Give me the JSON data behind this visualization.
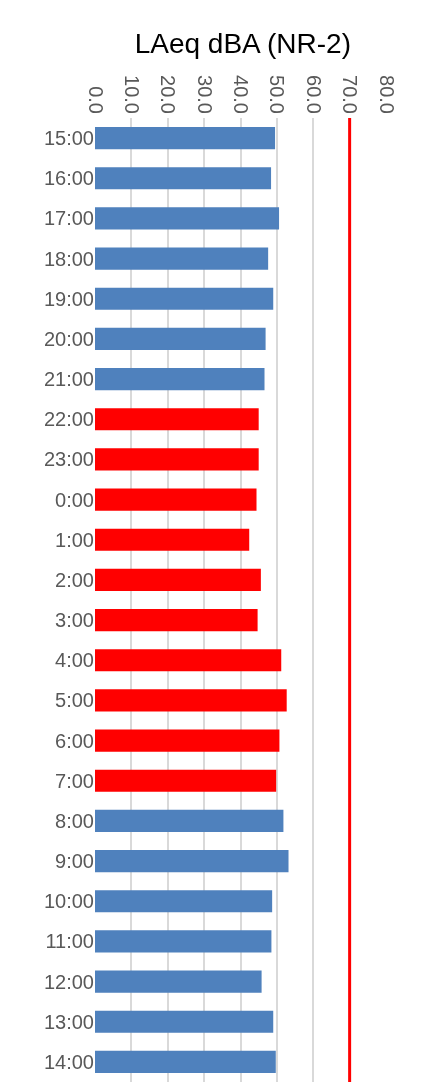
{
  "chart_data": {
    "type": "bar",
    "orientation": "horizontal",
    "title": "LAeq dBA (NR-2)",
    "categories": [
      "15:00",
      "16:00",
      "17:00",
      "18:00",
      "19:00",
      "20:00",
      "21:00",
      "22:00",
      "23:00",
      "0:00",
      "1:00",
      "2:00",
      "3:00",
      "4:00",
      "5:00",
      "6:00",
      "7:00",
      "8:00",
      "9:00",
      "10:00",
      "11:00",
      "12:00",
      "13:00",
      "14:00"
    ],
    "values": [
      49.5,
      48.4,
      50.6,
      47.6,
      49.0,
      46.9,
      46.6,
      45.0,
      45.0,
      44.4,
      42.4,
      45.6,
      44.7,
      51.2,
      52.7,
      50.7,
      49.8,
      51.8,
      53.2,
      48.7,
      48.5,
      45.8,
      49.0,
      49.7
    ],
    "colors": [
      "#4f81bd",
      "#4f81bd",
      "#4f81bd",
      "#4f81bd",
      "#4f81bd",
      "#4f81bd",
      "#4f81bd",
      "#ff0000",
      "#ff0000",
      "#ff0000",
      "#ff0000",
      "#ff0000",
      "#ff0000",
      "#ff0000",
      "#ff0000",
      "#ff0000",
      "#ff0000",
      "#4f81bd",
      "#4f81bd",
      "#4f81bd",
      "#4f81bd",
      "#4f81bd",
      "#4f81bd",
      "#4f81bd"
    ],
    "xlim": [
      0,
      80
    ],
    "xticks": [
      {
        "value": 0,
        "label": "0.0"
      },
      {
        "value": 10,
        "label": "10.0"
      },
      {
        "value": 20,
        "label": "20.0"
      },
      {
        "value": 30,
        "label": "30.0"
      },
      {
        "value": 40,
        "label": "40.0"
      },
      {
        "value": 50,
        "label": "50.0"
      },
      {
        "value": 60,
        "label": "60.0"
      },
      {
        "value": 70,
        "label": "70.0"
      },
      {
        "value": 80,
        "label": "80.0"
      }
    ],
    "grid": "x",
    "ref_lines": [
      {
        "axis": "x",
        "value": 70,
        "color": "#ff0000"
      }
    ]
  }
}
